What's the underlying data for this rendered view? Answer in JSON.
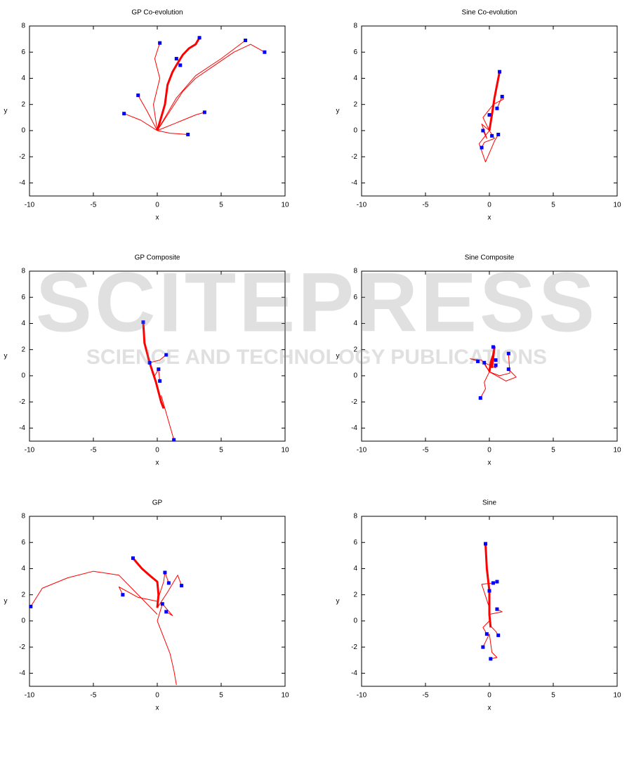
{
  "watermark": {
    "title": "SCITEPRESS",
    "subtitle": "SCIENCE AND TECHNOLOGY PUBLICATIONS"
  },
  "chart_data": [
    {
      "type": "trajectory",
      "title": "GP Co-evolution",
      "xlabel": "x",
      "ylabel": "y",
      "xlim": [
        -10,
        10
      ],
      "ylim": [
        -5,
        8
      ],
      "xticks": [
        -10,
        -5,
        0,
        5,
        10
      ],
      "yticks": [
        -4,
        -2,
        0,
        2,
        4,
        6,
        8
      ],
      "series": [
        {
          "style": "line",
          "color": "#ff0000",
          "width": 3,
          "x": [
            0,
            0.3,
            0.6,
            0.8,
            1.2,
            1.5,
            2,
            2.5,
            3,
            3.3
          ],
          "values": [
            0,
            1,
            2,
            3.5,
            4.5,
            5,
            5.8,
            6.3,
            6.6,
            7.1
          ]
        },
        {
          "style": "line",
          "color": "#ff0000",
          "width": 1,
          "x": [
            0,
            1,
            2,
            3,
            4.5,
            6,
            7.3,
            8.4
          ],
          "values": [
            0,
            1.5,
            3,
            4,
            5,
            6,
            6.6,
            6.0
          ]
        },
        {
          "style": "line",
          "color": "#ff0000",
          "width": 1,
          "x": [
            0,
            1.5,
            3,
            5,
            6.9
          ],
          "values": [
            0,
            2.5,
            4.2,
            5.5,
            6.9
          ]
        },
        {
          "style": "line",
          "color": "#ff0000",
          "width": 1,
          "x": [
            0,
            -0.3,
            0.2,
            -0.2,
            0.2
          ],
          "values": [
            0,
            2,
            4,
            5.5,
            6.7
          ]
        },
        {
          "style": "line",
          "color": "#ff0000",
          "width": 1,
          "x": [
            0,
            -0.8,
            -1.5
          ],
          "values": [
            0,
            1.5,
            2.7
          ]
        },
        {
          "style": "line",
          "color": "#ff0000",
          "width": 1,
          "x": [
            0,
            -1.3,
            -2.6
          ],
          "values": [
            0,
            0.8,
            1.3
          ]
        },
        {
          "style": "line",
          "color": "#ff0000",
          "width": 1,
          "x": [
            0,
            1.5,
            3,
            3.7
          ],
          "values": [
            0,
            0.6,
            1.2,
            1.4
          ]
        },
        {
          "style": "line",
          "color": "#ff0000",
          "width": 1,
          "x": [
            0,
            1,
            2.4
          ],
          "values": [
            0,
            -0.2,
            -0.3
          ]
        },
        {
          "style": "points",
          "color": "#0000ff",
          "x": [
            0.2,
            3.3,
            1.5,
            1.8,
            6.9,
            8.4,
            -1.5,
            -2.6,
            3.7,
            2.4
          ],
          "values": [
            6.7,
            7.1,
            5.5,
            5.0,
            6.9,
            6.0,
            2.7,
            1.3,
            1.4,
            -0.3
          ]
        }
      ]
    },
    {
      "type": "trajectory",
      "title": "Sine Co-evolution",
      "xlabel": "x",
      "ylabel": "y",
      "xlim": [
        -10,
        10
      ],
      "ylim": [
        -5,
        8
      ],
      "xticks": [
        -10,
        -5,
        0,
        5,
        10
      ],
      "yticks": [
        -4,
        -2,
        0,
        2,
        4,
        6,
        8
      ],
      "series": [
        {
          "style": "line",
          "color": "#ff0000",
          "width": 3,
          "x": [
            0,
            0.2,
            0.4,
            0.6,
            0.8
          ],
          "values": [
            0,
            1.2,
            2.5,
            3.5,
            4.5
          ]
        },
        {
          "style": "line",
          "color": "#ff0000",
          "width": 1,
          "x": [
            0,
            -0.5,
            0.3,
            1.1,
            1.0,
            0.6
          ],
          "values": [
            0,
            1,
            2,
            2.4,
            2.6,
            1.7
          ]
        },
        {
          "style": "line",
          "color": "#ff0000",
          "width": 1,
          "x": [
            0,
            -0.8,
            -0.3,
            0.4,
            0.7
          ],
          "values": [
            0,
            -1,
            -2.4,
            -0.8,
            -0.3
          ]
        },
        {
          "style": "line",
          "color": "#ff0000",
          "width": 1,
          "x": [
            0,
            -0.6,
            -0.2,
            -0.5
          ],
          "values": [
            0,
            0.5,
            -0.6,
            0
          ]
        },
        {
          "style": "line",
          "color": "#ff0000",
          "width": 1,
          "x": [
            0,
            0.4,
            -0.4,
            -0.6
          ],
          "values": [
            0,
            -0.6,
            -0.9,
            -1.3
          ]
        },
        {
          "style": "points",
          "color": "#0000ff",
          "x": [
            0.8,
            1.0,
            0.6,
            0,
            -0.5,
            -0.6,
            0.7,
            0.2
          ],
          "values": [
            4.5,
            2.6,
            1.7,
            1.2,
            0,
            -1.3,
            -0.3,
            -0.4
          ]
        }
      ]
    },
    {
      "type": "trajectory",
      "title": "GP Composite",
      "xlabel": "x",
      "ylabel": "y",
      "xlim": [
        -10,
        10
      ],
      "ylim": [
        -5,
        8
      ],
      "xticks": [
        -10,
        -5,
        0,
        5,
        10
      ],
      "yticks": [
        -4,
        -2,
        0,
        2,
        4,
        6,
        8
      ],
      "series": [
        {
          "style": "line",
          "color": "#ff0000",
          "width": 3,
          "x": [
            -1.1,
            -1,
            -0.6,
            -0.1,
            0.3,
            0.5
          ],
          "values": [
            4.1,
            2.5,
            1,
            -0.5,
            -2,
            -2.5
          ]
        },
        {
          "style": "line",
          "color": "#ff0000",
          "width": 1,
          "x": [
            0.3,
            0.8,
            1.3
          ],
          "values": [
            -1.5,
            -3.2,
            -4.9
          ]
        },
        {
          "style": "line",
          "color": "#ff0000",
          "width": 1,
          "x": [
            -0.3,
            -0.6,
            0.2,
            0.7
          ],
          "values": [
            0.2,
            1.0,
            1.2,
            1.6
          ]
        },
        {
          "style": "line",
          "color": "#ff0000",
          "width": 1,
          "x": [
            -0.2,
            0.1,
            0.2
          ],
          "values": [
            0,
            0.5,
            -0.4
          ]
        },
        {
          "style": "points",
          "color": "#0000ff",
          "x": [
            -1.1,
            -0.6,
            0.7,
            0.1,
            0.2,
            1.3
          ],
          "values": [
            4.1,
            1.0,
            1.6,
            0.5,
            -0.4,
            -4.9
          ]
        }
      ]
    },
    {
      "type": "trajectory",
      "title": "Sine Composite",
      "xlabel": "x",
      "ylabel": "y",
      "xlim": [
        -10,
        10
      ],
      "ylim": [
        -5,
        8
      ],
      "xticks": [
        -10,
        -5,
        0,
        5,
        10
      ],
      "yticks": [
        -4,
        -2,
        0,
        2,
        4,
        6,
        8
      ],
      "series": [
        {
          "style": "line",
          "color": "#ff0000",
          "width": 3,
          "x": [
            0,
            0.1,
            0.3,
            0.4,
            0.2
          ],
          "values": [
            0.3,
            1.0,
            1.6,
            2.2,
            0.6
          ]
        },
        {
          "style": "line",
          "color": "#ff0000",
          "width": 1,
          "x": [
            0,
            0.8,
            1.6,
            1.5
          ],
          "values": [
            0.3,
            0,
            0.2,
            1.7
          ]
        },
        {
          "style": "line",
          "color": "#ff0000",
          "width": 1,
          "x": [
            0,
            1.3,
            2.1,
            1.5
          ],
          "values": [
            0.3,
            -0.4,
            -0.1,
            0.5
          ]
        },
        {
          "style": "line",
          "color": "#ff0000",
          "width": 1,
          "x": [
            0,
            -0.6,
            -1.5,
            -0.9
          ],
          "values": [
            0.3,
            1.2,
            1.3,
            1.1
          ]
        },
        {
          "style": "line",
          "color": "#ff0000",
          "width": 1,
          "x": [
            0,
            -0.4,
            -0.3,
            -0.7
          ],
          "values": [
            0.3,
            -0.5,
            -1.0,
            -1.7
          ]
        },
        {
          "style": "line",
          "color": "#ff0000",
          "width": 1,
          "x": [
            0,
            -0.4,
            0.5,
            0.5
          ],
          "values": [
            0.3,
            1.0,
            0.6,
            0.8
          ]
        },
        {
          "style": "points",
          "color": "#0000ff",
          "x": [
            0.3,
            1.5,
            0.5,
            -0.9,
            -0.4,
            0.5,
            1.5,
            -0.7
          ],
          "values": [
            2.2,
            1.7,
            1.2,
            1.1,
            1.0,
            0.8,
            0.5,
            -1.7
          ]
        }
      ]
    },
    {
      "type": "trajectory",
      "title": "GP",
      "xlabel": "x",
      "ylabel": "y",
      "xlim": [
        -10,
        10
      ],
      "ylim": [
        -5,
        8
      ],
      "xticks": [
        -10,
        -5,
        0,
        5,
        10
      ],
      "yticks": [
        -4,
        -2,
        0,
        2,
        4,
        6,
        8
      ],
      "series": [
        {
          "style": "line",
          "color": "#ff0000",
          "width": 3,
          "x": [
            -1.9,
            -1.2,
            -0.5,
            0,
            0.1,
            0
          ],
          "values": [
            4.8,
            4.0,
            3.4,
            3.0,
            2.0,
            1.0
          ]
        },
        {
          "style": "line",
          "color": "#ff0000",
          "width": 1,
          "x": [
            0,
            -1,
            -2,
            -3,
            -5,
            -7,
            -9,
            -9.9
          ],
          "values": [
            0.5,
            1.5,
            2.5,
            3.5,
            3.8,
            3.3,
            2.5,
            1.1
          ]
        },
        {
          "style": "line",
          "color": "#ff0000",
          "width": 1,
          "x": [
            0,
            0.6,
            1.0,
            1.3,
            1.5
          ],
          "values": [
            0,
            -1.5,
            -2.5,
            -3.8,
            -4.9
          ]
        },
        {
          "style": "line",
          "color": "#ff0000",
          "width": 1,
          "x": [
            0,
            0.8,
            1.6,
            1.9
          ],
          "values": [
            1,
            2.2,
            3.5,
            2.7
          ]
        },
        {
          "style": "line",
          "color": "#ff0000",
          "width": 1,
          "x": [
            0,
            0.5,
            0.6,
            0.9
          ],
          "values": [
            1.5,
            3.0,
            3.7,
            2.9
          ]
        },
        {
          "style": "line",
          "color": "#ff0000",
          "width": 1,
          "x": [
            0,
            -1.5,
            -3,
            -2.7
          ],
          "values": [
            1.5,
            1.8,
            2.6,
            2.0
          ]
        },
        {
          "style": "line",
          "color": "#ff0000",
          "width": 1,
          "x": [
            0,
            0.4,
            1.2,
            0.7
          ],
          "values": [
            0,
            1.3,
            0.4,
            0.7
          ]
        },
        {
          "style": "points",
          "color": "#0000ff",
          "x": [
            -1.9,
            0.6,
            1.9,
            0.9,
            -2.7,
            0.4,
            0.7,
            -9.9
          ],
          "values": [
            4.8,
            3.7,
            2.7,
            2.9,
            2.0,
            1.3,
            0.7,
            1.1
          ]
        }
      ]
    },
    {
      "type": "trajectory",
      "title": "Sine",
      "xlabel": "x",
      "ylabel": "y",
      "xlim": [
        -10,
        10
      ],
      "ylim": [
        -5,
        8
      ],
      "xticks": [
        -10,
        -5,
        0,
        5,
        10
      ],
      "yticks": [
        -4,
        -2,
        0,
        2,
        4,
        6,
        8
      ],
      "series": [
        {
          "style": "line",
          "color": "#ff0000",
          "width": 3,
          "x": [
            -0.3,
            -0.2,
            0,
            0,
            0.1
          ],
          "values": [
            5.9,
            4.0,
            2.3,
            0.5,
            -0.5
          ]
        },
        {
          "style": "line",
          "color": "#ff0000",
          "width": 1,
          "x": [
            0,
            -0.6,
            0.3,
            0.6
          ],
          "values": [
            1,
            2.8,
            2.9,
            3.0
          ]
        },
        {
          "style": "line",
          "color": "#ff0000",
          "width": 1,
          "x": [
            0,
            1.0,
            0.6
          ],
          "values": [
            0.5,
            0.7,
            0.9
          ]
        },
        {
          "style": "line",
          "color": "#ff0000",
          "width": 1,
          "x": [
            0,
            -0.5,
            -0.2
          ],
          "values": [
            0,
            -0.5,
            -1.0
          ]
        },
        {
          "style": "line",
          "color": "#ff0000",
          "width": 1,
          "x": [
            0,
            0.5,
            0.7
          ],
          "values": [
            -0.3,
            -0.8,
            -1.1
          ]
        },
        {
          "style": "line",
          "color": "#ff0000",
          "width": 1,
          "x": [
            0,
            -0.3,
            -0.5
          ],
          "values": [
            -1,
            -1.6,
            -2.0
          ]
        },
        {
          "style": "line",
          "color": "#ff0000",
          "width": 1,
          "x": [
            0,
            0.2,
            0.6,
            0.1
          ],
          "values": [
            -1,
            -2.4,
            -2.8,
            -2.9
          ]
        },
        {
          "style": "points",
          "color": "#0000ff",
          "x": [
            -0.3,
            0.3,
            0.6,
            0,
            0.6,
            -0.2,
            0.7,
            -0.5,
            0.1
          ],
          "values": [
            5.9,
            2.9,
            3.0,
            2.3,
            0.9,
            -1.0,
            -1.1,
            -2.0,
            -2.9
          ]
        }
      ]
    }
  ]
}
